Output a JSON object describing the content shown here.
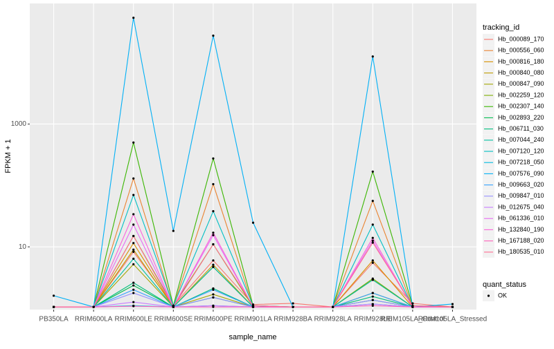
{
  "chart_data": {
    "type": "line",
    "x_label": "sample_name",
    "y_label": "FPKM + 1",
    "legend_title": "tracking_id",
    "categories": [
      "PB350LA",
      "RRIM600LA",
      "RRIM600LE",
      "RRIM600SE",
      "RRIM600PE",
      "RRIM901LA",
      "RRIM928BA",
      "RRIM928LA",
      "RRIM928LE",
      "RRIM105LA_Control",
      "RRIM105LA_Stressed"
    ],
    "log_y": true,
    "ylim": [
      0.95,
      92000
    ],
    "yticks": [
      10,
      1000
    ],
    "grid": true,
    "legend_position": "right",
    "point_color": "#000000",
    "point_legend": {
      "title": "quant_status",
      "labels": [
        "OK"
      ]
    },
    "series": [
      {
        "name": "Hb_000089_170",
        "color": "#F8766D",
        "values": [
          1.05,
          1.05,
          8.3,
          1.1,
          6.0,
          1.15,
          1.2,
          1.05,
          5.5,
          1.2,
          1.05
        ]
      },
      {
        "name": "Hb_000556_060",
        "color": "#EA8331",
        "values": [
          1.05,
          1.05,
          130,
          1.05,
          105,
          1.05,
          1.05,
          1.05,
          56,
          1.05,
          1.05
        ]
      },
      {
        "name": "Hb_000816_180",
        "color": "#D89000",
        "values": [
          1.05,
          1.05,
          11.5,
          1.05,
          4.7,
          1.05,
          1.05,
          1.05,
          6.0,
          1.05,
          1.05
        ]
      },
      {
        "name": "Hb_000840_080",
        "color": "#C09B00",
        "values": [
          1.05,
          1.05,
          9,
          1.05,
          5.1,
          1.05,
          1.05,
          1.05,
          2.9,
          1.05,
          1.05
        ]
      },
      {
        "name": "Hb_000847_090",
        "color": "#A3A500",
        "values": [
          1.05,
          1.05,
          5.2,
          1.05,
          1.68,
          1.05,
          1.05,
          1.05,
          1.77,
          1.05,
          1.05
        ]
      },
      {
        "name": "Hb_002259_120",
        "color": "#7CAE00",
        "values": [
          1.05,
          1.05,
          15,
          1.1,
          11,
          1.05,
          1.05,
          1.05,
          3.04,
          1.05,
          1.05
        ]
      },
      {
        "name": "Hb_002307_140",
        "color": "#39B600",
        "values": [
          1.05,
          1.05,
          500,
          1.1,
          275,
          1.1,
          1.05,
          1.05,
          168,
          1.1,
          1.05
        ]
      },
      {
        "name": "Hb_002893_220",
        "color": "#00BB4E",
        "values": [
          1.05,
          1.05,
          2.35,
          1.05,
          1.5,
          1.05,
          1.05,
          1.05,
          1.36,
          1.05,
          1.05
        ]
      },
      {
        "name": "Hb_006711_030",
        "color": "#00BF7D",
        "values": [
          1.05,
          1.05,
          2.6,
          1.05,
          2.1,
          1.05,
          1.05,
          1.05,
          1.55,
          1.05,
          1.05
        ]
      },
      {
        "name": "Hb_007044_240",
        "color": "#00C1A3",
        "values": [
          1.05,
          1.05,
          6.4,
          1.05,
          4.7,
          1.05,
          1.05,
          1.05,
          2.9,
          1.05,
          1.05
        ]
      },
      {
        "name": "Hb_007120_120",
        "color": "#00BFC4",
        "values": [
          1.05,
          1.05,
          70,
          1.1,
          38,
          1.1,
          1.05,
          1.05,
          23,
          1.05,
          1.05
        ]
      },
      {
        "name": "Hb_007218_050",
        "color": "#00BAE0",
        "values": [
          1.05,
          1.05,
          1.1,
          1.05,
          1.1,
          1.05,
          1.05,
          1.05,
          1.17,
          1.05,
          1.05
        ]
      },
      {
        "name": "Hb_007576_090",
        "color": "#00B0F6",
        "values": [
          1.6,
          1.05,
          53700,
          18.2,
          27500,
          24.7,
          1.05,
          1.05,
          12600,
          1.05,
          1.17
        ]
      },
      {
        "name": "Hb_009663_020",
        "color": "#35A2FF",
        "values": [
          1.05,
          1.05,
          2.0,
          1.05,
          2.0,
          1.05,
          1.05,
          1.05,
          1.77,
          1.05,
          1.05
        ]
      },
      {
        "name": "Hb_009847_010",
        "color": "#9590FF",
        "values": [
          1.05,
          1.05,
          1.77,
          1.05,
          1.5,
          1.05,
          1.05,
          1.05,
          1.36,
          1.05,
          1.05
        ]
      },
      {
        "name": "Hb_012675_040",
        "color": "#C77CFF",
        "values": [
          1.05,
          1.05,
          1.26,
          1.05,
          1.1,
          1.05,
          1.05,
          1.05,
          1.17,
          1.05,
          1.05
        ]
      },
      {
        "name": "Hb_061336_010",
        "color": "#E76BF3",
        "values": [
          1.05,
          1.05,
          23,
          1.05,
          15.5,
          1.05,
          1.05,
          1.05,
          12.6,
          1.05,
          1.05
        ]
      },
      {
        "name": "Hb_132840_190",
        "color": "#FA62DB",
        "values": [
          1.05,
          1.05,
          34,
          1.05,
          17,
          1.05,
          1.05,
          1.05,
          14,
          1.05,
          1.05
        ]
      },
      {
        "name": "Hb_167188_020",
        "color": "#FF62BC",
        "values": [
          1.05,
          1.05,
          1.08,
          1.05,
          1.05,
          1.05,
          1.05,
          1.05,
          1.1,
          1.05,
          1.05
        ]
      },
      {
        "name": "Hb_180535_010",
        "color": "#FF6C91",
        "values": [
          1.05,
          1.05,
          15,
          1.05,
          11,
          1.1,
          1.05,
          1.05,
          11.7,
          1.1,
          1.05
        ]
      }
    ]
  }
}
